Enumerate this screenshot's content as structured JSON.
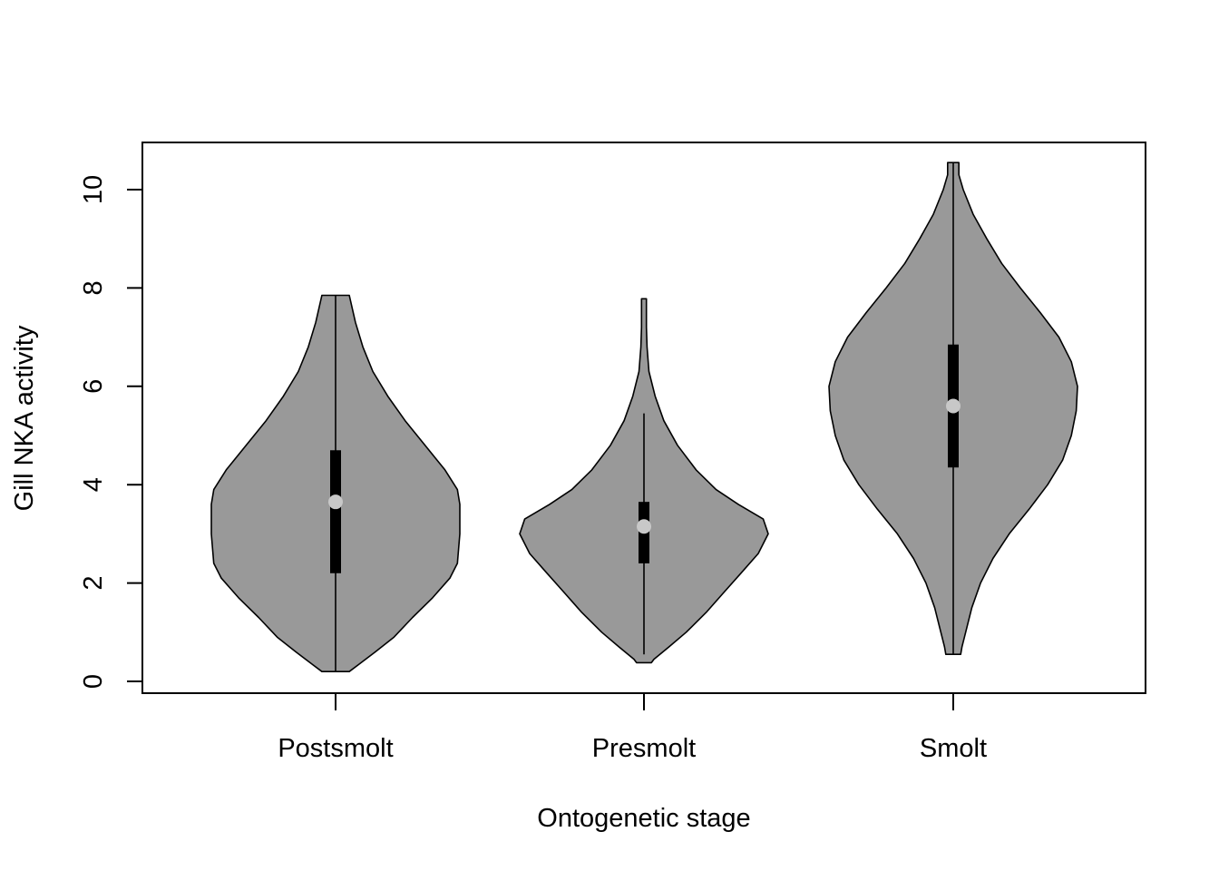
{
  "chart_data": {
    "type": "violin",
    "title": "",
    "xlabel": "Ontogenetic stage",
    "ylabel": "Gill NKA activity",
    "ylim": [
      -0.2,
      11
    ],
    "yticks": [
      0,
      2,
      4,
      6,
      8,
      10
    ],
    "grid": false,
    "categories": [
      "Postsmolt",
      "Presmolt",
      "Smolt"
    ],
    "series": [
      {
        "category": "Postsmolt",
        "min": 0.2,
        "q1": 2.2,
        "median": 3.65,
        "q3": 4.7,
        "max": 7.85,
        "density": [
          [
            0.2,
            0.11
          ],
          [
            0.35,
            0.19
          ],
          [
            0.6,
            0.32
          ],
          [
            0.9,
            0.47
          ],
          [
            1.3,
            0.62
          ],
          [
            1.7,
            0.78
          ],
          [
            2.1,
            0.92
          ],
          [
            2.4,
            0.98
          ],
          [
            3.0,
            1.0
          ],
          [
            3.6,
            1.0
          ],
          [
            3.9,
            0.98
          ],
          [
            4.3,
            0.88
          ],
          [
            4.8,
            0.72
          ],
          [
            5.3,
            0.56
          ],
          [
            5.8,
            0.42
          ],
          [
            6.3,
            0.3
          ],
          [
            6.8,
            0.22
          ],
          [
            7.3,
            0.16
          ],
          [
            7.85,
            0.11
          ]
        ]
      },
      {
        "category": "Presmolt",
        "min": 0.55,
        "q1": 2.4,
        "median": 3.15,
        "q3": 3.65,
        "max": 5.45,
        "density": [
          [
            0.38,
            0.06
          ],
          [
            0.45,
            0.08
          ],
          [
            0.7,
            0.2
          ],
          [
            1.0,
            0.34
          ],
          [
            1.4,
            0.5
          ],
          [
            1.8,
            0.64
          ],
          [
            2.2,
            0.78
          ],
          [
            2.6,
            0.92
          ],
          [
            3.0,
            1.0
          ],
          [
            3.3,
            0.96
          ],
          [
            3.6,
            0.76
          ],
          [
            3.9,
            0.58
          ],
          [
            4.3,
            0.42
          ],
          [
            4.8,
            0.27
          ],
          [
            5.3,
            0.16
          ],
          [
            5.8,
            0.09
          ],
          [
            6.3,
            0.04
          ],
          [
            6.8,
            0.025
          ],
          [
            7.2,
            0.02
          ],
          [
            7.78,
            0.02
          ]
        ]
      },
      {
        "category": "Smolt",
        "min": 0.55,
        "q1": 4.35,
        "median": 5.6,
        "q3": 6.85,
        "max": 10.55,
        "density": [
          [
            0.55,
            0.06
          ],
          [
            0.7,
            0.07
          ],
          [
            1.0,
            0.1
          ],
          [
            1.5,
            0.15
          ],
          [
            2.0,
            0.22
          ],
          [
            2.5,
            0.32
          ],
          [
            3.0,
            0.45
          ],
          [
            3.5,
            0.61
          ],
          [
            4.0,
            0.76
          ],
          [
            4.5,
            0.88
          ],
          [
            5.0,
            0.95
          ],
          [
            5.5,
            0.99
          ],
          [
            6.0,
            1.0
          ],
          [
            6.5,
            0.95
          ],
          [
            7.0,
            0.85
          ],
          [
            7.5,
            0.7
          ],
          [
            8.0,
            0.54
          ],
          [
            8.5,
            0.39
          ],
          [
            9.0,
            0.27
          ],
          [
            9.5,
            0.16
          ],
          [
            10.0,
            0.08
          ],
          [
            10.3,
            0.045
          ],
          [
            10.55,
            0.045
          ]
        ]
      }
    ],
    "colors": {
      "violin_fill": "#999999",
      "box_fill": "#000000",
      "median_marker": "#c8c8c8",
      "axis": "#000000"
    }
  }
}
